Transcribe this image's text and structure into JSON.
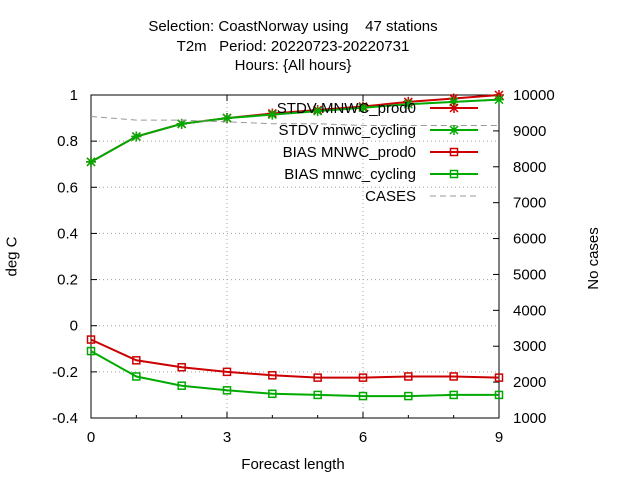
{
  "chart_data": {
    "type": "line",
    "title": [
      "Selection: CoastNorway using    47 stations",
      "T2m   Period: 20220723-20220731",
      "Hours: {All hours}"
    ],
    "xlabel": "Forecast length",
    "ylabel": "deg C",
    "y2label": "No cases",
    "x": [
      0,
      1,
      2,
      3,
      4,
      5,
      6,
      7,
      8,
      9
    ],
    "xlim": [
      0,
      9
    ],
    "xticks": [
      "0",
      "3",
      "6",
      "9"
    ],
    "ylim": [
      -0.4,
      1.0
    ],
    "yticks": [
      "-0.4",
      "-0.2",
      "0",
      "0.2",
      "0.4",
      "0.6",
      "0.8",
      "1"
    ],
    "y2lim": [
      1000,
      10000
    ],
    "y2ticks": [
      "1000",
      "2000",
      "3000",
      "4000",
      "5000",
      "6000",
      "7000",
      "8000",
      "9000",
      "10000"
    ],
    "grid": true,
    "legend_position": "top-right",
    "series": [
      {
        "name": "STDV MNWC_prod0",
        "color": "#cc0000",
        "marker": "star",
        "axis": "left",
        "values": [
          0.71,
          0.82,
          0.875,
          0.9,
          0.92,
          0.935,
          0.95,
          0.97,
          0.985,
          1.0
        ]
      },
      {
        "name": "STDV mnwc_cycling",
        "color": "#00aa00",
        "marker": "star",
        "axis": "left",
        "values": [
          0.71,
          0.82,
          0.875,
          0.9,
          0.915,
          0.93,
          0.945,
          0.96,
          0.97,
          0.98
        ]
      },
      {
        "name": "BIAS MNWC_prod0",
        "color": "#cc0000",
        "marker": "square",
        "axis": "left",
        "values": [
          -0.06,
          -0.15,
          -0.18,
          -0.2,
          -0.215,
          -0.225,
          -0.225,
          -0.22,
          -0.22,
          -0.225
        ]
      },
      {
        "name": "BIAS mnwc_cycling",
        "color": "#00aa00",
        "marker": "square",
        "axis": "left",
        "values": [
          -0.11,
          -0.22,
          -0.26,
          -0.28,
          -0.295,
          -0.3,
          -0.305,
          -0.305,
          -0.3,
          -0.3
        ]
      },
      {
        "name": "CASES",
        "color": "#999999",
        "marker": "none",
        "dash": true,
        "axis": "right",
        "values": [
          9400,
          9300,
          9300,
          9250,
          9200,
          9200,
          9150,
          9150,
          9150,
          9150
        ]
      }
    ]
  }
}
